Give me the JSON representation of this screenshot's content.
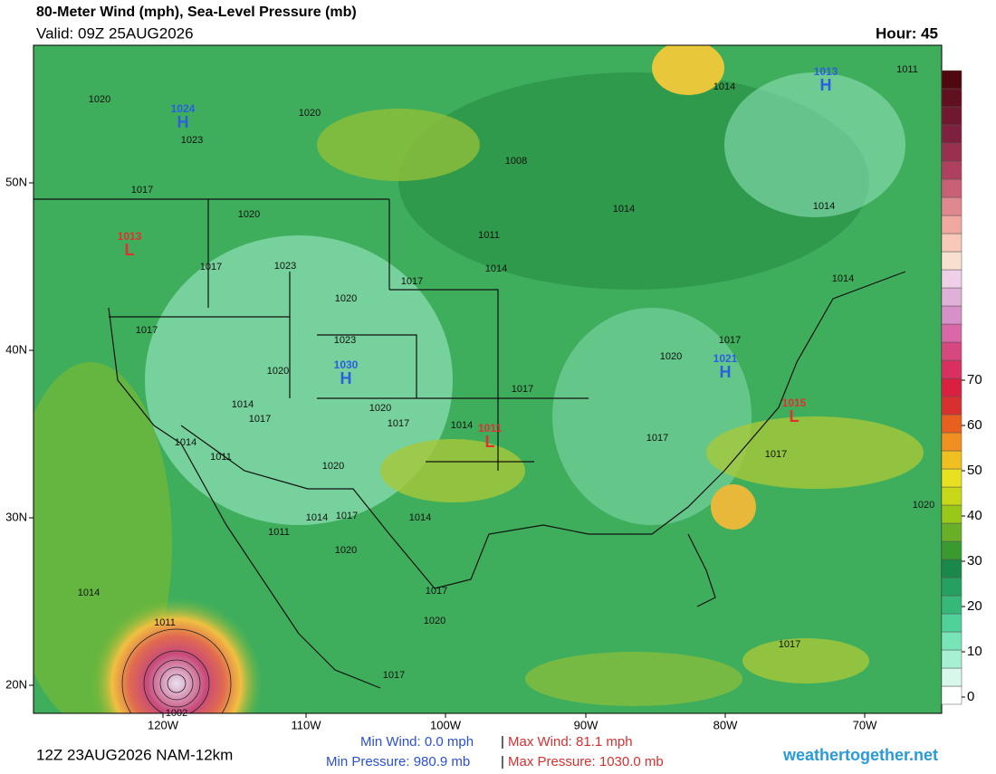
{
  "header": {
    "title": "80-Meter Wind (mph), Sea-Level Pressure (mb)",
    "valid": "Valid: 09Z 25AUG2026",
    "hour": "Hour: 45"
  },
  "colorbar": {
    "ticks": [
      0,
      10,
      20,
      30,
      40,
      50,
      60,
      70
    ]
  },
  "lat_labels": [
    "50N",
    "40N",
    "30N",
    "20N"
  ],
  "lon_labels": [
    "120W",
    "110W",
    "100W",
    "90W",
    "80W",
    "70W"
  ],
  "isobar_labels": [
    "1020",
    "1023",
    "1020",
    "1008",
    "1017",
    "1020",
    "1011",
    "1014",
    "1017",
    "1023",
    "1017",
    "1020",
    "1017",
    "1023",
    "1020",
    "1014",
    "1017",
    "1020",
    "1017",
    "1014",
    "1017",
    "1020",
    "1017",
    "1017",
    "1017",
    "1014",
    "1011",
    "1020",
    "1014",
    "1017",
    "1014",
    "1011",
    "1020",
    "1017",
    "1020",
    "1017",
    "1014",
    "1011",
    "1002",
    "1011",
    "1014",
    "1014",
    "1014",
    "1014",
    "1020",
    "1017"
  ],
  "highs": [
    "1024",
    "1030",
    "1021",
    "1013"
  ],
  "lows": [
    "1013",
    "1011",
    "1015"
  ],
  "high_symbol": "H",
  "low_symbol": "L",
  "footer": {
    "run": "12Z 23AUG2026 NAM-12km",
    "min_wind": "Min Wind:  0.0 mph",
    "max_wind": "Max Wind:  81.1 mph",
    "min_pressure": "Min Pressure: 980.9 mb",
    "max_pressure": "Max Pressure: 1030.0 mb",
    "separator": "|",
    "site": "weathertogether.net"
  }
}
